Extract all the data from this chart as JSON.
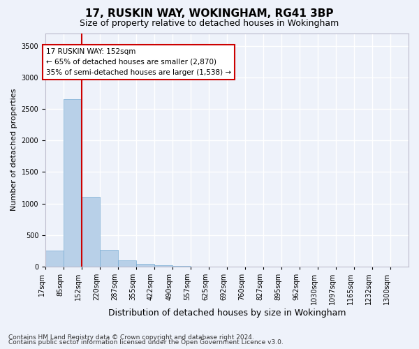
{
  "title1": "17, RUSKIN WAY, WOKINGHAM, RG41 3BP",
  "title2": "Size of property relative to detached houses in Wokingham",
  "xlabel": "Distribution of detached houses by size in Wokingham",
  "ylabel": "Number of detached properties",
  "footnote1": "Contains HM Land Registry data © Crown copyright and database right 2024.",
  "footnote2": "Contains public sector information licensed under the Open Government Licence v3.0.",
  "annotation_line1": "17 RUSKIN WAY: 152sqm",
  "annotation_line2": "← 65% of detached houses are smaller (2,870)",
  "annotation_line3": "35% of semi-detached houses are larger (1,538) →",
  "property_size": 152,
  "bar_color": "#b8d0e8",
  "bar_edge_color": "#7aadd4",
  "vline_color": "#cc0000",
  "annotation_box_color": "#cc0000",
  "ylim": [
    0,
    3700
  ],
  "yticks": [
    0,
    500,
    1000,
    1500,
    2000,
    2500,
    3000,
    3500
  ],
  "bins": [
    17,
    85,
    152,
    220,
    287,
    355,
    422,
    490,
    557,
    625,
    692,
    760,
    827,
    895,
    962,
    1030,
    1097,
    1165,
    1232,
    1300,
    1367
  ],
  "counts": [
    250,
    2650,
    1100,
    270,
    100,
    45,
    20,
    5,
    3,
    2,
    1,
    1,
    0,
    0,
    0,
    0,
    0,
    0,
    0,
    0
  ],
  "background_color": "#eef2fa",
  "grid_color": "#ffffff",
  "title1_fontsize": 11,
  "title2_fontsize": 9,
  "tick_fontsize": 7,
  "ylabel_fontsize": 8,
  "xlabel_fontsize": 9,
  "annotation_fontsize": 7.5,
  "footnote_fontsize": 6.5
}
